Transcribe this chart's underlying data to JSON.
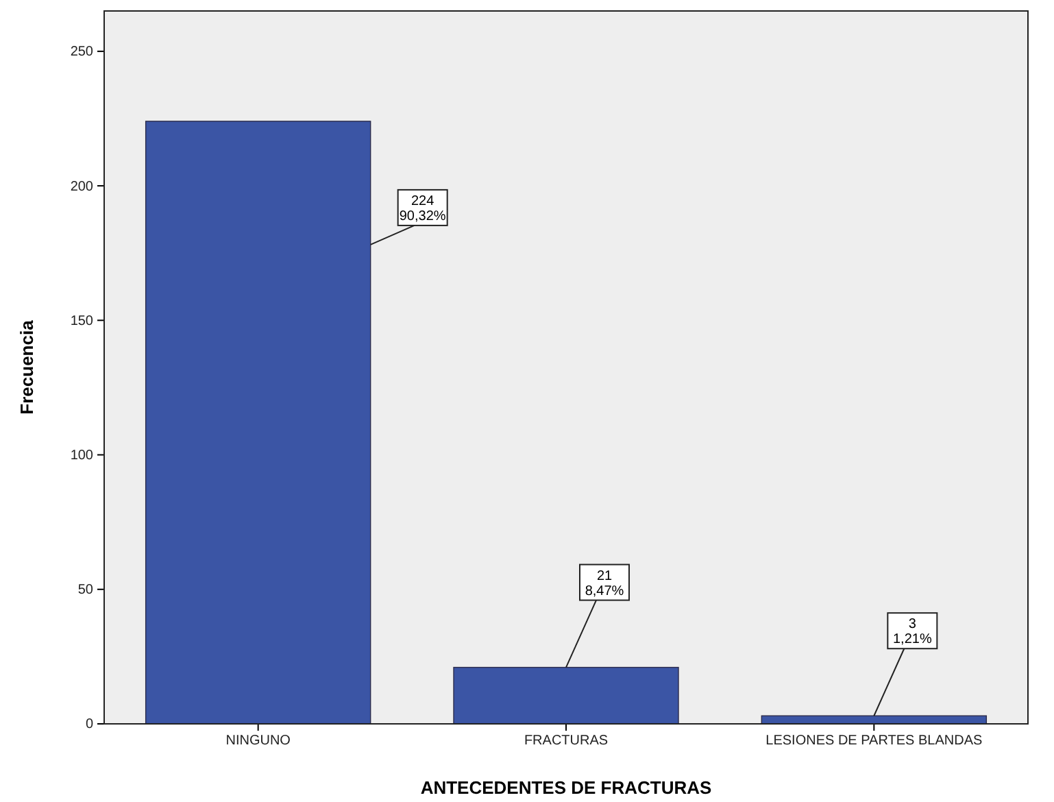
{
  "chart_data": {
    "type": "bar",
    "xlabel": "ANTECEDENTES DE FRACTURAS",
    "ylabel": "Frecuencia",
    "categories": [
      "NINGUNO",
      "FRACTURAS",
      "LESIONES DE PARTES BLANDAS"
    ],
    "values": [
      224,
      21,
      3
    ],
    "color": "#3b55a5",
    "value_labels": [
      "224\n90,32%",
      "21\n8,47%",
      "3\n1,21%"
    ],
    "ylim": [
      0,
      265
    ],
    "yticks": [
      0,
      50,
      100,
      150,
      200,
      250
    ],
    "grid": false
  }
}
